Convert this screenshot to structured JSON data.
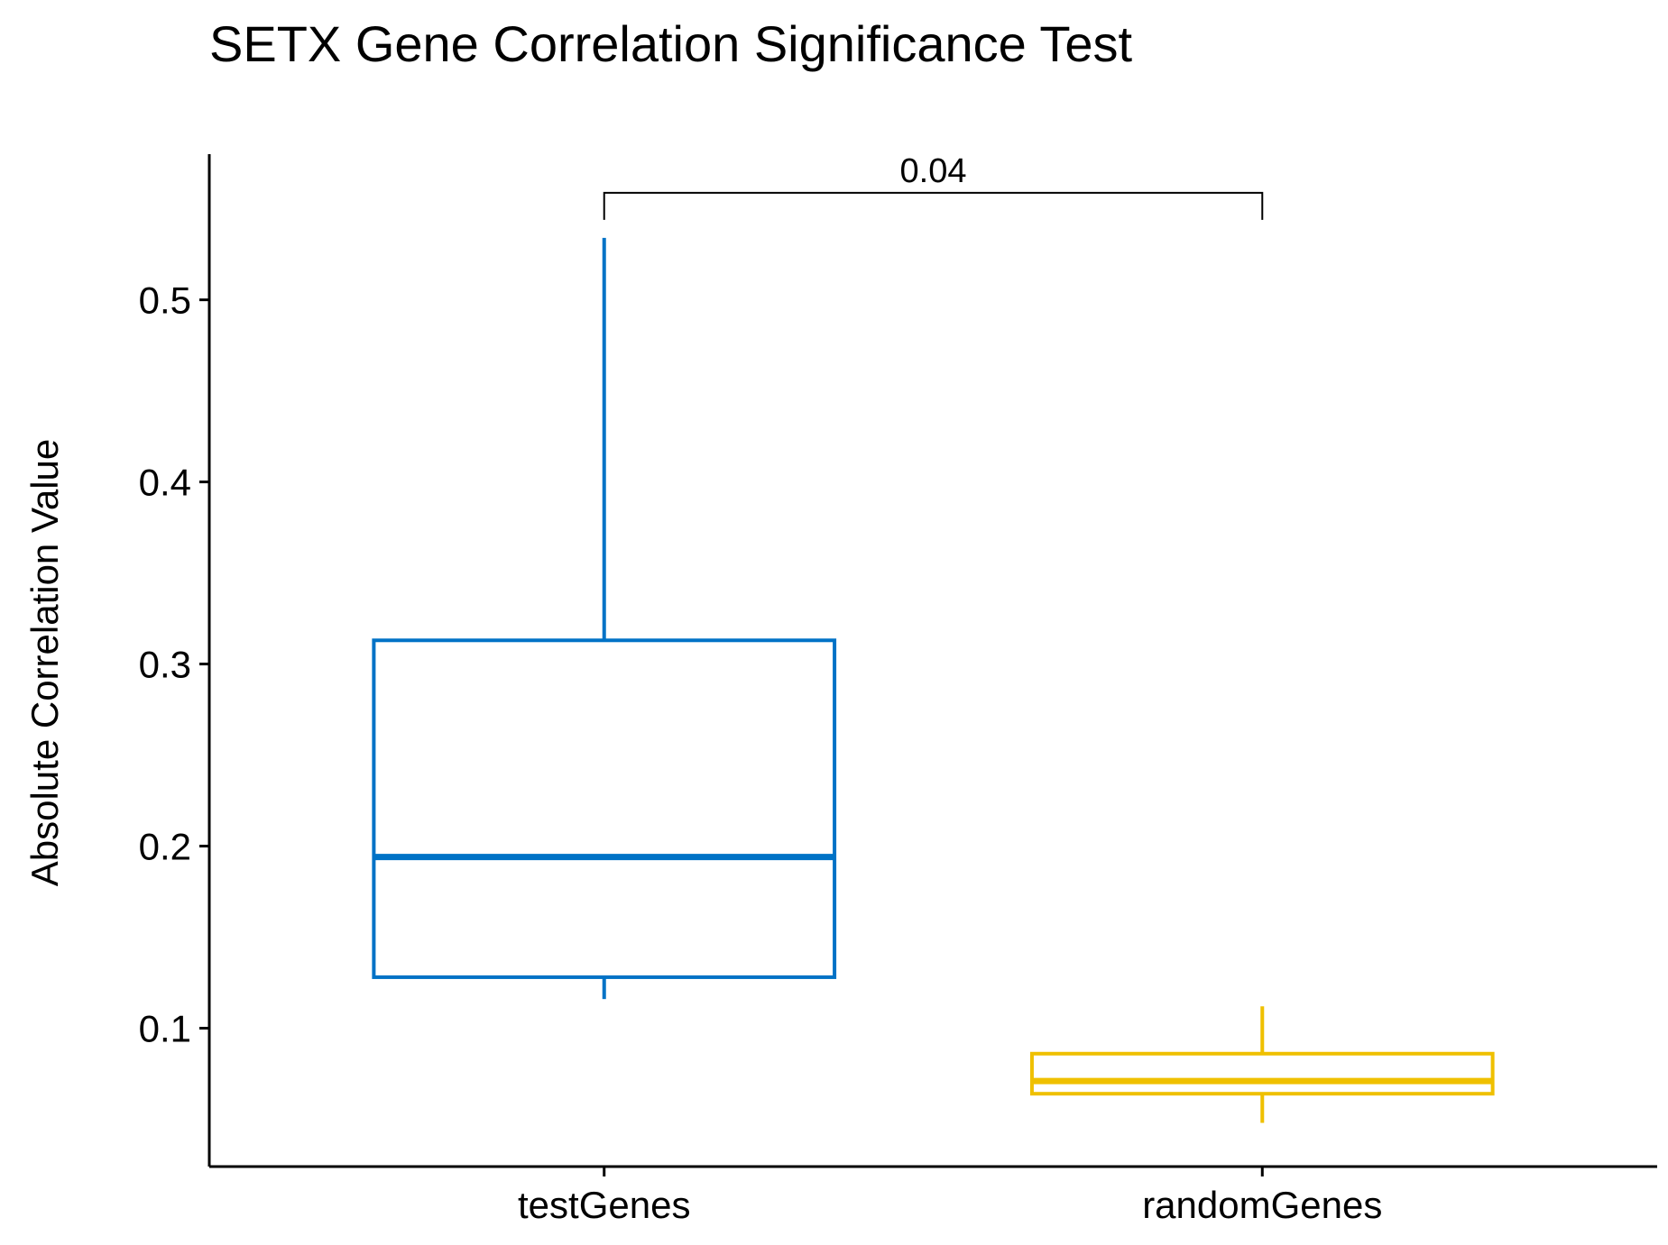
{
  "chart_data": {
    "type": "boxplot",
    "title": "SETX Gene Correlation Significance Test",
    "xlabel": "",
    "ylabel": "Absolute Correlation Value",
    "ylim": [
      0.024,
      0.58
    ],
    "yticks": [
      0.1,
      0.2,
      0.3,
      0.4,
      0.5
    ],
    "ytick_labels": [
      "0.1",
      "0.2",
      "0.3",
      "0.4",
      "0.5"
    ],
    "categories": [
      "testGenes",
      "randomGenes"
    ],
    "boxes": [
      {
        "category": "testGenes",
        "whisker_low": 0.116,
        "q1": 0.128,
        "median": 0.194,
        "q3": 0.313,
        "whisker_high": 0.534,
        "color": "#0072C6"
      },
      {
        "category": "randomGenes",
        "whisker_low": 0.048,
        "q1": 0.064,
        "median": 0.071,
        "q3": 0.086,
        "whisker_high": 0.112,
        "color": "#EFC000"
      }
    ],
    "comparison": {
      "groups": [
        "testGenes",
        "randomGenes"
      ],
      "p_label": "0.04"
    },
    "grid": false,
    "legend": "none"
  }
}
